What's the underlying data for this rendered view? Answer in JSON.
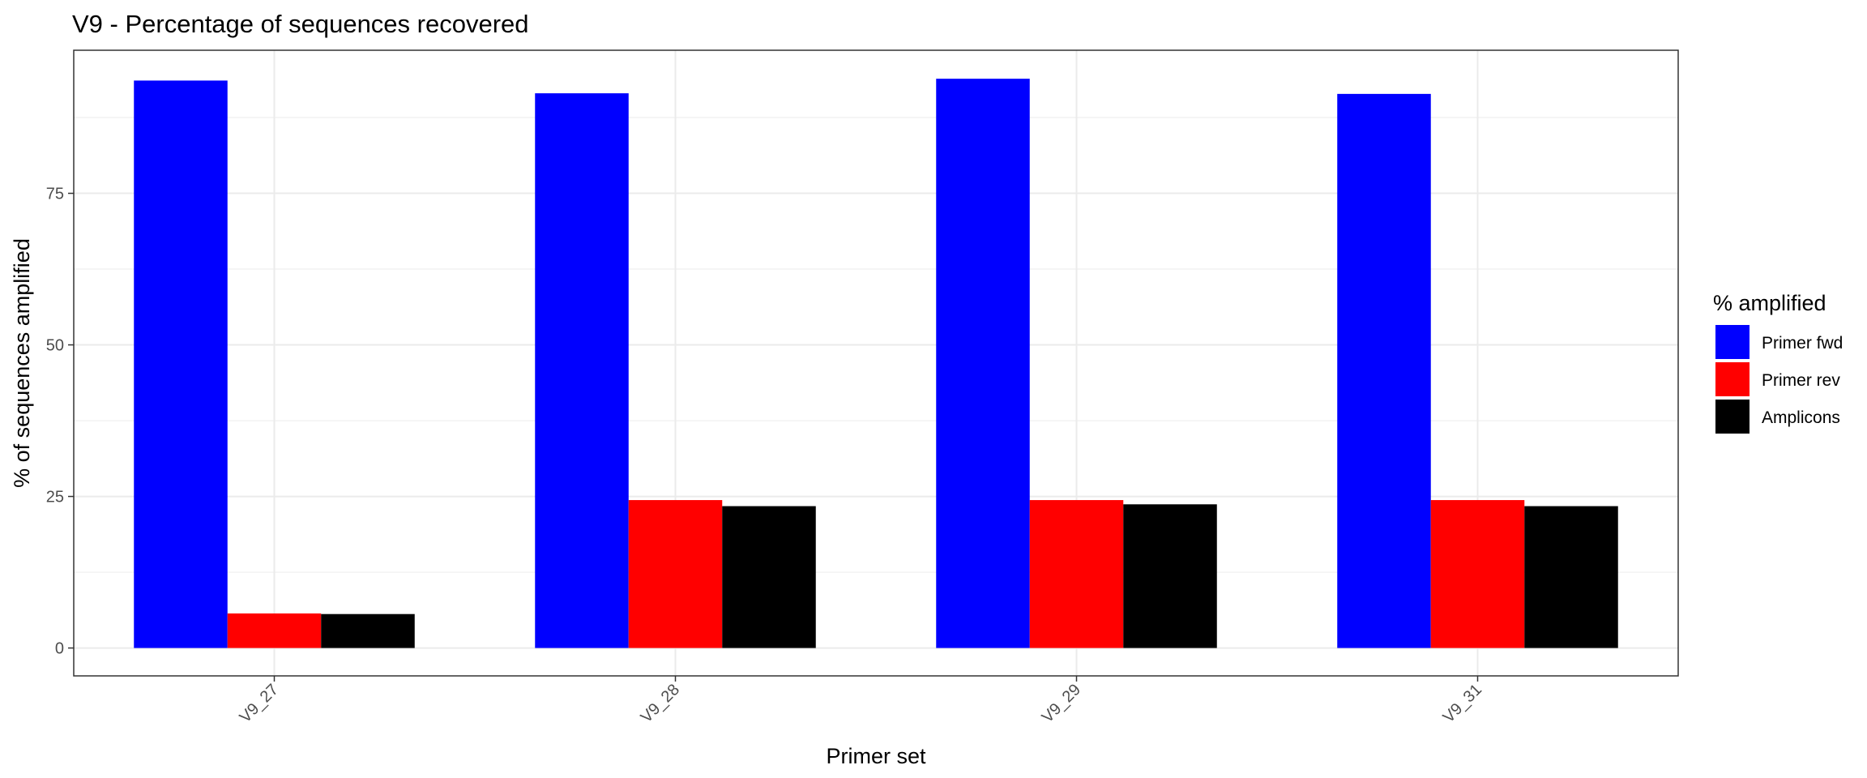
{
  "chart_data": {
    "type": "bar",
    "title": "V9 - Percentage of sequences recovered",
    "xlabel": "Primer set",
    "ylabel": "% of sequences amplified",
    "categories": [
      "V9_27",
      "V9_28",
      "V9_29",
      "V9_31"
    ],
    "series": [
      {
        "name": "Primer fwd",
        "color": "#0000ff",
        "values": [
          93.6,
          91.5,
          93.9,
          91.4
        ]
      },
      {
        "name": "Primer rev",
        "color": "#ff0000",
        "values": [
          5.7,
          24.4,
          24.4,
          24.4
        ]
      },
      {
        "name": "Amplicons",
        "color": "#000000",
        "values": [
          5.6,
          23.4,
          23.7,
          23.4
        ]
      }
    ],
    "ylim": [
      -4.6,
      98.6
    ],
    "yticks": [
      "0",
      "25",
      "50",
      "75"
    ],
    "grid": true,
    "legend": {
      "title": "% amplified",
      "position": "right"
    }
  }
}
